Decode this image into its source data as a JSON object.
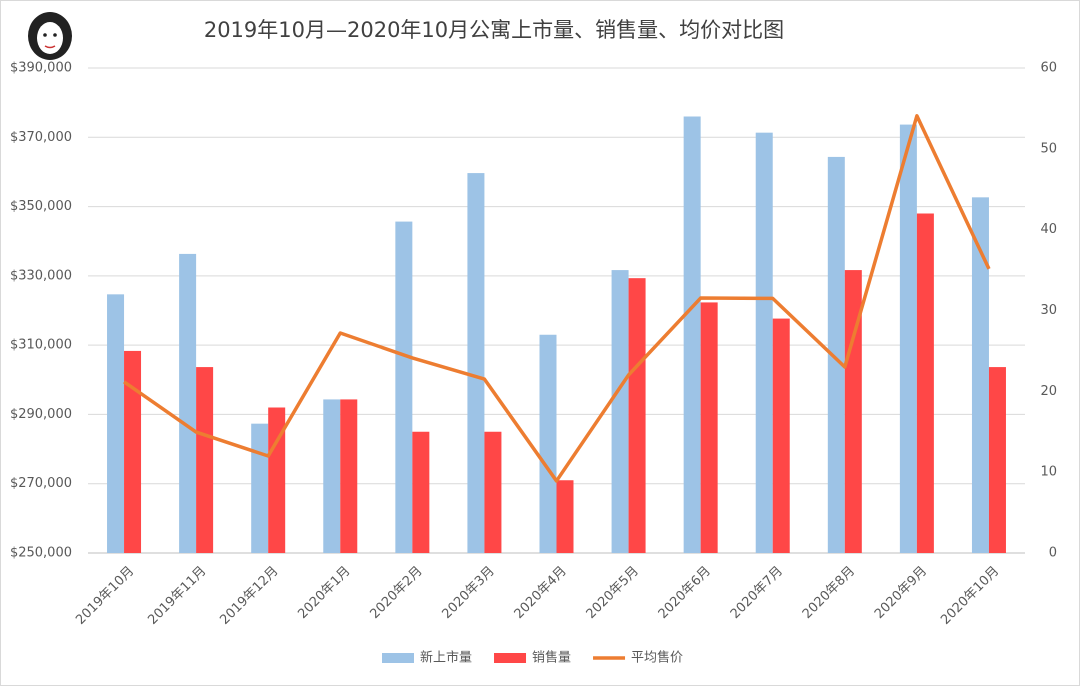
{
  "chart_data": {
    "type": "bar_line",
    "title": "2019年10月—2020年10月公寓上市量、销售量、均价对比图",
    "categories": [
      "2019年10月",
      "2019年11月",
      "2019年12月",
      "2020年1月",
      "2020年2月",
      "2020年3月",
      "2020年4月",
      "2020年5月",
      "2020年6月",
      "2020年7月",
      "2020年8月",
      "2020年9月",
      "2020年10月"
    ],
    "series": [
      {
        "name": "新上市量",
        "color": "#9dc3e6",
        "type": "bar",
        "axis": "y2",
        "values": [
          32,
          37,
          16,
          19,
          41,
          47,
          27,
          35,
          54,
          52,
          49,
          53,
          44
        ]
      },
      {
        "name": "销售量",
        "color": "#ff4747",
        "type": "bar",
        "axis": "y2",
        "values": [
          25,
          23,
          18,
          19,
          15,
          15,
          9,
          34,
          31,
          29,
          35,
          42,
          23
        ]
      },
      {
        "name": "平均售价",
        "color": "#ed7d31",
        "type": "line",
        "axis": "y",
        "values": [
          299400,
          284900,
          278000,
          313500,
          306300,
          300200,
          270800,
          301400,
          323600,
          323500,
          303700,
          376200,
          332000
        ]
      }
    ],
    "ylim": [
      250000,
      390000
    ],
    "yticks": [
      {
        "value": 250000,
        "label": "$250,000"
      },
      {
        "value": 270000,
        "label": "$270,000"
      },
      {
        "value": 290000,
        "label": "$290,000"
      },
      {
        "value": 310000,
        "label": "$310,000"
      },
      {
        "value": 330000,
        "label": "$330,000"
      },
      {
        "value": 350000,
        "label": "$350,000"
      },
      {
        "value": 370000,
        "label": "$370,000"
      },
      {
        "value": 390000,
        "label": "$390,000"
      }
    ],
    "y2lim": [
      0,
      60
    ],
    "y2ticks": [
      0,
      10,
      20,
      30,
      40,
      50,
      60
    ],
    "grid": true,
    "legend": "bottom"
  }
}
